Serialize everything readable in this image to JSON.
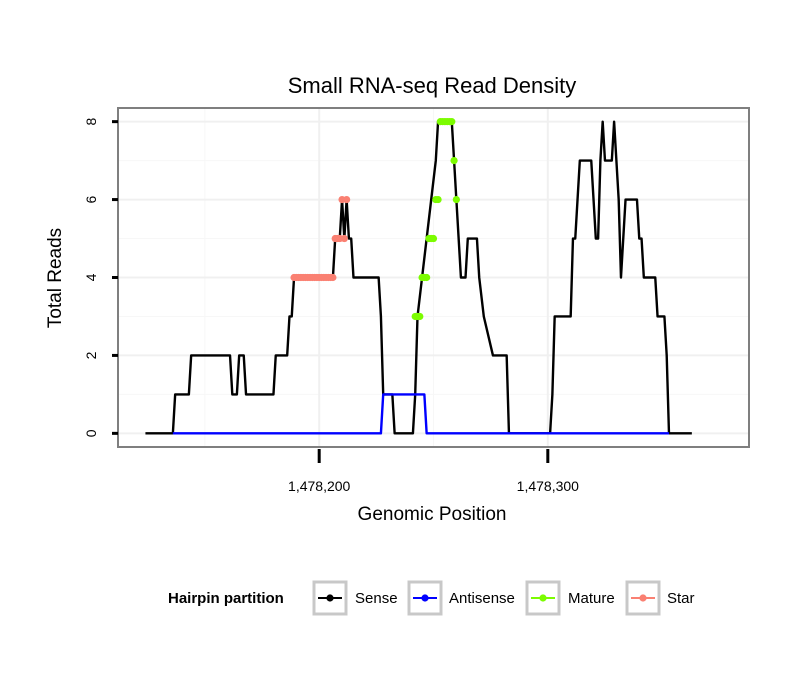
{
  "chart_data": {
    "type": "line",
    "title": "Small RNA-seq Read Density",
    "xlabel": "Genomic Position",
    "ylabel": "Total Reads",
    "xlim": [
      1478112,
      1478388
    ],
    "ylim": [
      -0.35,
      8.35
    ],
    "x_ticks": [
      1478200,
      1478300
    ],
    "x_tick_labels": [
      "1,478,200",
      "1,478,300"
    ],
    "y_ticks": [
      0,
      2,
      4,
      6,
      8
    ],
    "y_tick_labels": [
      "0",
      "2",
      "4",
      "6",
      "8"
    ],
    "grid": true,
    "legend": {
      "title": "Hairpin partition",
      "position": "bottom",
      "entries": [
        "Sense",
        "Antisense",
        "Mature",
        "Star"
      ]
    },
    "series": [
      {
        "name": "Sense",
        "color": "#000000",
        "style": "line",
        "points": [
          [
            1478124,
            0
          ],
          [
            1478136,
            0
          ],
          [
            1478137,
            1
          ],
          [
            1478143,
            1
          ],
          [
            1478144,
            2
          ],
          [
            1478161,
            2
          ],
          [
            1478162,
            1
          ],
          [
            1478164,
            1
          ],
          [
            1478165,
            2
          ],
          [
            1478167,
            2
          ],
          [
            1478168,
            1
          ],
          [
            1478180,
            1
          ],
          [
            1478181,
            2
          ],
          [
            1478186,
            2
          ],
          [
            1478187,
            3
          ],
          [
            1478188,
            3
          ],
          [
            1478189,
            4
          ],
          [
            1478206,
            4
          ],
          [
            1478207,
            5
          ],
          [
            1478209,
            5
          ],
          [
            1478210,
            6
          ],
          [
            1478211,
            5
          ],
          [
            1478212,
            6
          ],
          [
            1478213,
            5
          ],
          [
            1478214,
            5
          ],
          [
            1478215,
            4
          ],
          [
            1478226,
            4
          ],
          [
            1478227,
            3
          ],
          [
            1478228,
            1
          ],
          [
            1478232,
            1
          ],
          [
            1478233,
            0
          ],
          [
            1478241,
            0
          ],
          [
            1478242,
            1
          ],
          [
            1478243,
            3
          ],
          [
            1478245,
            4
          ],
          [
            1478247,
            5
          ],
          [
            1478249,
            6
          ],
          [
            1478251,
            7
          ],
          [
            1478252,
            8
          ],
          [
            1478258,
            8
          ],
          [
            1478259,
            7
          ],
          [
            1478260,
            6
          ],
          [
            1478262,
            4
          ],
          [
            1478264,
            4
          ],
          [
            1478265,
            5
          ],
          [
            1478269,
            5
          ],
          [
            1478270,
            4
          ],
          [
            1478272,
            3
          ],
          [
            1478276,
            2
          ],
          [
            1478282,
            2
          ],
          [
            1478283,
            0
          ],
          [
            1478301,
            0
          ],
          [
            1478302,
            1
          ],
          [
            1478303,
            3
          ],
          [
            1478310,
            3
          ],
          [
            1478311,
            5
          ],
          [
            1478312,
            5
          ],
          [
            1478314,
            7
          ],
          [
            1478319,
            7
          ],
          [
            1478320,
            6
          ],
          [
            1478321,
            5
          ],
          [
            1478322,
            5
          ],
          [
            1478323,
            7
          ],
          [
            1478324,
            8
          ],
          [
            1478325,
            7
          ],
          [
            1478328,
            7
          ],
          [
            1478329,
            8
          ],
          [
            1478331,
            6
          ],
          [
            1478332,
            4
          ],
          [
            1478334,
            6
          ],
          [
            1478339,
            6
          ],
          [
            1478340,
            5
          ],
          [
            1478341,
            5
          ],
          [
            1478342,
            4
          ],
          [
            1478347,
            4
          ],
          [
            1478348,
            3
          ],
          [
            1478351,
            3
          ],
          [
            1478352,
            2
          ],
          [
            1478353,
            0
          ],
          [
            1478363,
            0
          ]
        ]
      },
      {
        "name": "Antisense",
        "color": "#0000ff",
        "style": "line",
        "points": [
          [
            1478136,
            0
          ],
          [
            1478227,
            0
          ],
          [
            1478228,
            1
          ],
          [
            1478246,
            1
          ],
          [
            1478247,
            0
          ],
          [
            1478353,
            0
          ]
        ]
      },
      {
        "name": "Mature",
        "color": "#7cfc00",
        "style": "points",
        "points": [
          [
            1478242,
            3
          ],
          [
            1478243,
            3
          ],
          [
            1478244,
            3
          ],
          [
            1478245,
            4
          ],
          [
            1478246,
            4
          ],
          [
            1478247,
            4
          ],
          [
            1478248,
            5
          ],
          [
            1478249,
            5
          ],
          [
            1478250,
            5
          ],
          [
            1478251,
            6
          ],
          [
            1478252,
            6
          ],
          [
            1478253,
            8
          ],
          [
            1478254,
            8
          ],
          [
            1478255,
            8
          ],
          [
            1478256,
            8
          ],
          [
            1478257,
            8
          ],
          [
            1478258,
            8
          ],
          [
            1478259,
            7
          ],
          [
            1478260,
            6
          ]
        ]
      },
      {
        "name": "Star",
        "color": "#fa8072",
        "style": "points",
        "points": [
          [
            1478189,
            4
          ],
          [
            1478190,
            4
          ],
          [
            1478191,
            4
          ],
          [
            1478192,
            4
          ],
          [
            1478193,
            4
          ],
          [
            1478194,
            4
          ],
          [
            1478195,
            4
          ],
          [
            1478196,
            4
          ],
          [
            1478197,
            4
          ],
          [
            1478198,
            4
          ],
          [
            1478199,
            4
          ],
          [
            1478200,
            4
          ],
          [
            1478201,
            4
          ],
          [
            1478202,
            4
          ],
          [
            1478203,
            4
          ],
          [
            1478204,
            4
          ],
          [
            1478205,
            4
          ],
          [
            1478206,
            4
          ],
          [
            1478207,
            5
          ],
          [
            1478208,
            5
          ],
          [
            1478209,
            5
          ],
          [
            1478210,
            6
          ],
          [
            1478211,
            5
          ],
          [
            1478212,
            6
          ]
        ]
      }
    ]
  }
}
